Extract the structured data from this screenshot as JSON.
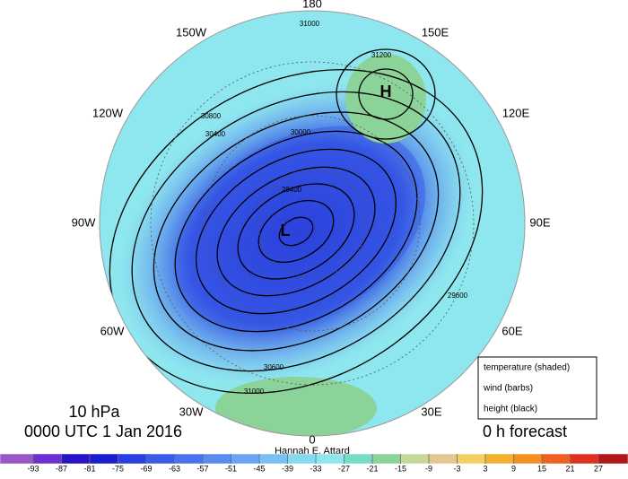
{
  "map": {
    "longitudes": [
      "180",
      "150E",
      "120E",
      "90E",
      "60E",
      "30E",
      "0",
      "30W",
      "60W",
      "90W",
      "120W",
      "150W"
    ],
    "level": "10 hPa",
    "time": "0000 UTC 1 Jan 2016",
    "author": "Hannah E. Attard",
    "forecast": "0 h forecast",
    "legend": [
      "temperature (shaded)",
      "wind (barbs)",
      "height (black)"
    ],
    "high": "H",
    "low": "L",
    "contour_labels": [
      "31000",
      "31200",
      "30800",
      "30000",
      "30400",
      "29600",
      "28400",
      "30600",
      "31000"
    ]
  },
  "colorbar": {
    "ticks": [
      -93,
      -87,
      -81,
      -75,
      -69,
      -63,
      -57,
      -51,
      -45,
      -39,
      -33,
      -27,
      -21,
      -15,
      -9,
      -3,
      3,
      9,
      15,
      21,
      27
    ],
    "colors": [
      "#9a55c8",
      "#6a30d0",
      "#2a12c8",
      "#1c1cd0",
      "#2a3fe0",
      "#3a5ae8",
      "#4a72ee",
      "#5a8cf0",
      "#6aa4f4",
      "#78c0f4",
      "#84daf0",
      "#8ee6ee",
      "#78dcc4",
      "#8cd39a",
      "#c4d89a",
      "#e2c890",
      "#f0d060",
      "#f4b030",
      "#f49020",
      "#f06020",
      "#e03020",
      "#b01818"
    ]
  }
}
